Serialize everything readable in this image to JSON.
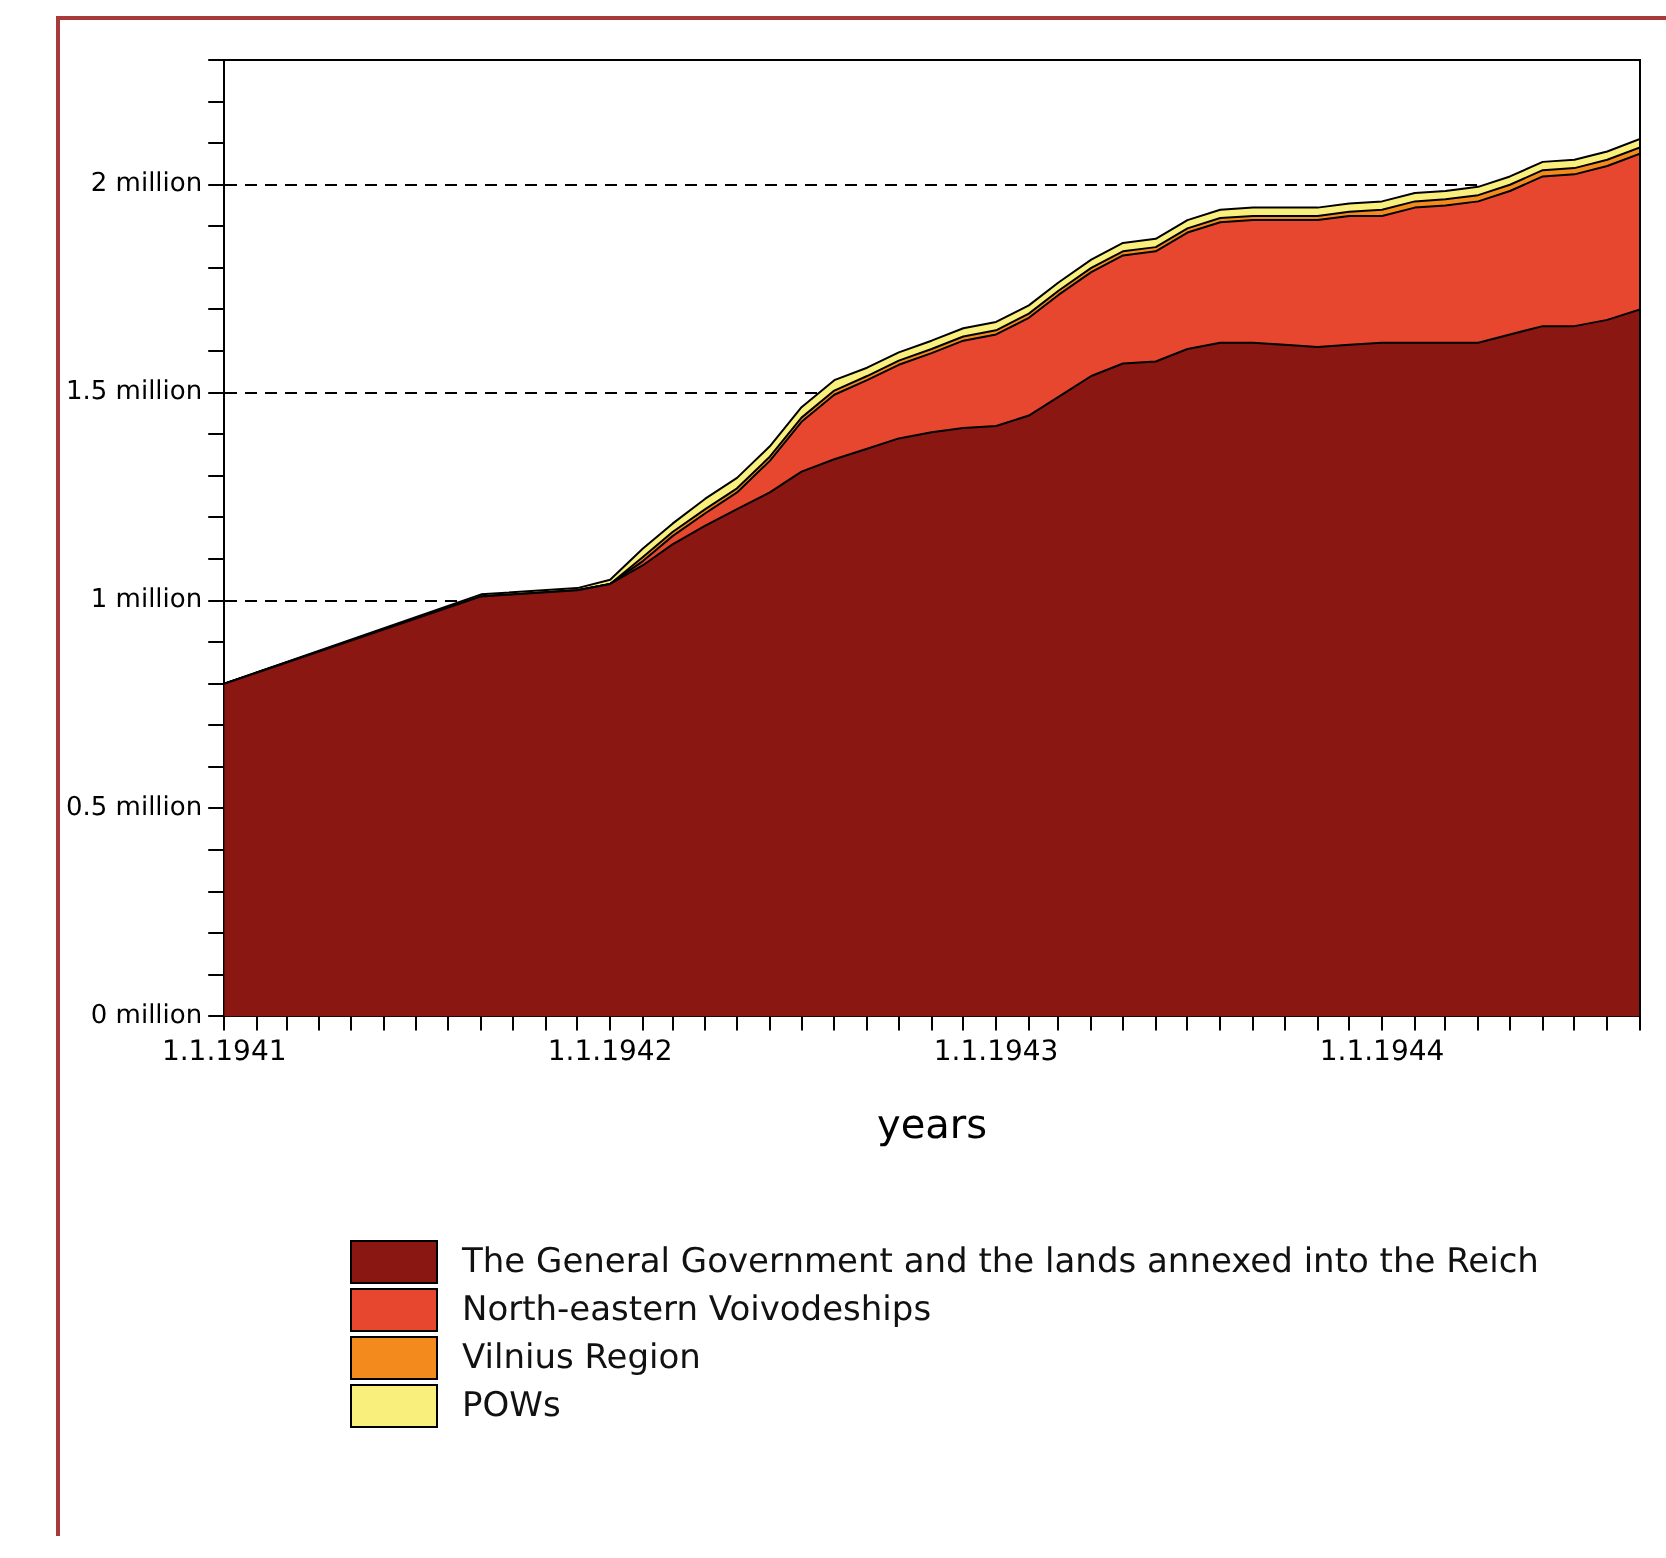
{
  "chart_data": {
    "type": "area",
    "stacked": true,
    "xlabel": "years",
    "grid": "y",
    "legend": "bottom",
    "x": [
      "1941-01",
      "1941-09",
      "1941-12",
      "1942-01",
      "1942-02",
      "1942-03",
      "1942-04",
      "1942-05",
      "1942-06",
      "1942-07",
      "1942-08",
      "1942-09",
      "1942-10",
      "1942-11",
      "1942-12",
      "1943-01",
      "1943-02",
      "1943-03",
      "1943-04",
      "1943-05",
      "1943-06",
      "1943-07",
      "1943-08",
      "1943-09",
      "1943-10",
      "1943-11",
      "1943-12",
      "1944-01",
      "1944-02",
      "1944-03",
      "1944-04",
      "1944-05",
      "1944-06",
      "1944-07",
      "1944-08",
      "1944-09"
    ],
    "series": [
      {
        "name": "The General Government and the lands annexed into the Reich",
        "color": "#8b1713",
        "values": [
          0.8,
          1.01,
          1.025,
          1.04,
          1.085,
          1.135,
          1.18,
          1.22,
          1.26,
          1.31,
          1.34,
          1.365,
          1.39,
          1.405,
          1.415,
          1.42,
          1.445,
          1.49,
          1.54,
          1.57,
          1.575,
          1.605,
          1.62,
          1.62,
          1.615,
          1.61,
          1.615,
          1.62,
          1.62,
          1.62,
          1.62,
          1.64,
          1.66,
          1.66,
          1.675,
          1.7
        ]
      },
      {
        "name": "North-eastern Voivodeships",
        "color": "#e8472f",
        "values": [
          0,
          0,
          0,
          0,
          0.01,
          0.02,
          0.03,
          0.04,
          0.076,
          0.12,
          0.155,
          0.165,
          0.177,
          0.19,
          0.21,
          0.22,
          0.235,
          0.245,
          0.25,
          0.26,
          0.265,
          0.28,
          0.29,
          0.295,
          0.3,
          0.305,
          0.31,
          0.305,
          0.325,
          0.33,
          0.34,
          0.345,
          0.36,
          0.365,
          0.37,
          0.375
        ]
      },
      {
        "name": "Vilnius Region",
        "color": "#f28a1e",
        "values": [
          0,
          0,
          0,
          0,
          0.01,
          0.01,
          0.01,
          0.01,
          0.01,
          0.01,
          0.01,
          0.01,
          0.01,
          0.01,
          0.01,
          0.01,
          0.01,
          0.01,
          0.01,
          0.01,
          0.01,
          0.01,
          0.01,
          0.01,
          0.01,
          0.01,
          0.01,
          0.015,
          0.015,
          0.015,
          0.015,
          0.015,
          0.015,
          0.015,
          0.015,
          0.015
        ]
      },
      {
        "name": "POWs",
        "color": "#f8ef7c",
        "values": [
          0,
          0.005,
          0.005,
          0.01,
          0.02,
          0.02,
          0.025,
          0.025,
          0.025,
          0.025,
          0.025,
          0.02,
          0.02,
          0.02,
          0.02,
          0.02,
          0.02,
          0.02,
          0.02,
          0.02,
          0.02,
          0.02,
          0.02,
          0.02,
          0.02,
          0.02,
          0.02,
          0.02,
          0.02,
          0.02,
          0.02,
          0.02,
          0.02,
          0.02,
          0.02,
          0.02
        ]
      }
    ],
    "xlim": [
      "1941-01",
      "1944-09"
    ],
    "xticks": [
      {
        "value": "1941-01",
        "label": "1.1.1941"
      },
      {
        "value": "1941-02",
        "label": null
      },
      {
        "value": "1941-03",
        "label": null
      },
      {
        "value": "1941-04",
        "label": null
      },
      {
        "value": "1941-05",
        "label": null
      },
      {
        "value": "1941-06",
        "label": null
      },
      {
        "value": "1941-07",
        "label": null
      },
      {
        "value": "1941-08",
        "label": null
      },
      {
        "value": "1941-09",
        "label": null
      },
      {
        "value": "1941-10",
        "label": null
      },
      {
        "value": "1941-11",
        "label": null
      },
      {
        "value": "1941-12",
        "label": null
      },
      {
        "value": "1942-01",
        "label": "1.1.1942"
      },
      {
        "value": "1942-02",
        "label": null
      },
      {
        "value": "1942-03",
        "label": null
      },
      {
        "value": "1942-04",
        "label": null
      },
      {
        "value": "1942-05",
        "label": null
      },
      {
        "value": "1942-06",
        "label": null
      },
      {
        "value": "1942-07",
        "label": null
      },
      {
        "value": "1942-08",
        "label": null
      },
      {
        "value": "1942-09",
        "label": null
      },
      {
        "value": "1942-10",
        "label": null
      },
      {
        "value": "1942-11",
        "label": null
      },
      {
        "value": "1942-12",
        "label": null
      },
      {
        "value": "1943-01",
        "label": "1.1.1943"
      },
      {
        "value": "1943-02",
        "label": null
      },
      {
        "value": "1943-03",
        "label": null
      },
      {
        "value": "1943-04",
        "label": null
      },
      {
        "value": "1943-05",
        "label": null
      },
      {
        "value": "1943-06",
        "label": null
      },
      {
        "value": "1943-07",
        "label": null
      },
      {
        "value": "1943-08",
        "label": null
      },
      {
        "value": "1943-09",
        "label": null
      },
      {
        "value": "1943-10",
        "label": null
      },
      {
        "value": "1943-11",
        "label": null
      },
      {
        "value": "1943-12",
        "label": null
      },
      {
        "value": "1944-01",
        "label": "1.1.1944"
      },
      {
        "value": "1944-02",
        "label": null
      },
      {
        "value": "1944-03",
        "label": null
      },
      {
        "value": "1944-04",
        "label": null
      },
      {
        "value": "1944-05",
        "label": null
      },
      {
        "value": "1944-06",
        "label": null
      },
      {
        "value": "1944-07",
        "label": null
      },
      {
        "value": "1944-08",
        "label": null
      },
      {
        "value": "1944-09",
        "label": null
      }
    ],
    "ylim": [
      0,
      2.3
    ],
    "yticks": [
      {
        "value": 0,
        "label": "0 million"
      },
      {
        "value": 0.1,
        "label": null
      },
      {
        "value": 0.2,
        "label": null
      },
      {
        "value": 0.3,
        "label": null
      },
      {
        "value": 0.4,
        "label": null
      },
      {
        "value": 0.5,
        "label": "0.5 million"
      },
      {
        "value": 0.6,
        "label": null
      },
      {
        "value": 0.7,
        "label": null
      },
      {
        "value": 0.8,
        "label": null
      },
      {
        "value": 0.9,
        "label": null
      },
      {
        "value": 1,
        "label": "1 million"
      },
      {
        "value": 1.1,
        "label": null
      },
      {
        "value": 1.2,
        "label": null
      },
      {
        "value": 1.3,
        "label": null
      },
      {
        "value": 1.4,
        "label": null
      },
      {
        "value": 1.5,
        "label": "1.5 million"
      },
      {
        "value": 1.6,
        "label": null
      },
      {
        "value": 1.7,
        "label": null
      },
      {
        "value": 1.8,
        "label": null
      },
      {
        "value": 1.9,
        "label": null
      },
      {
        "value": 2,
        "label": "2 million"
      },
      {
        "value": 2.1,
        "label": null
      },
      {
        "value": 2.2,
        "label": null
      },
      {
        "value": 2.3,
        "label": null
      }
    ]
  }
}
